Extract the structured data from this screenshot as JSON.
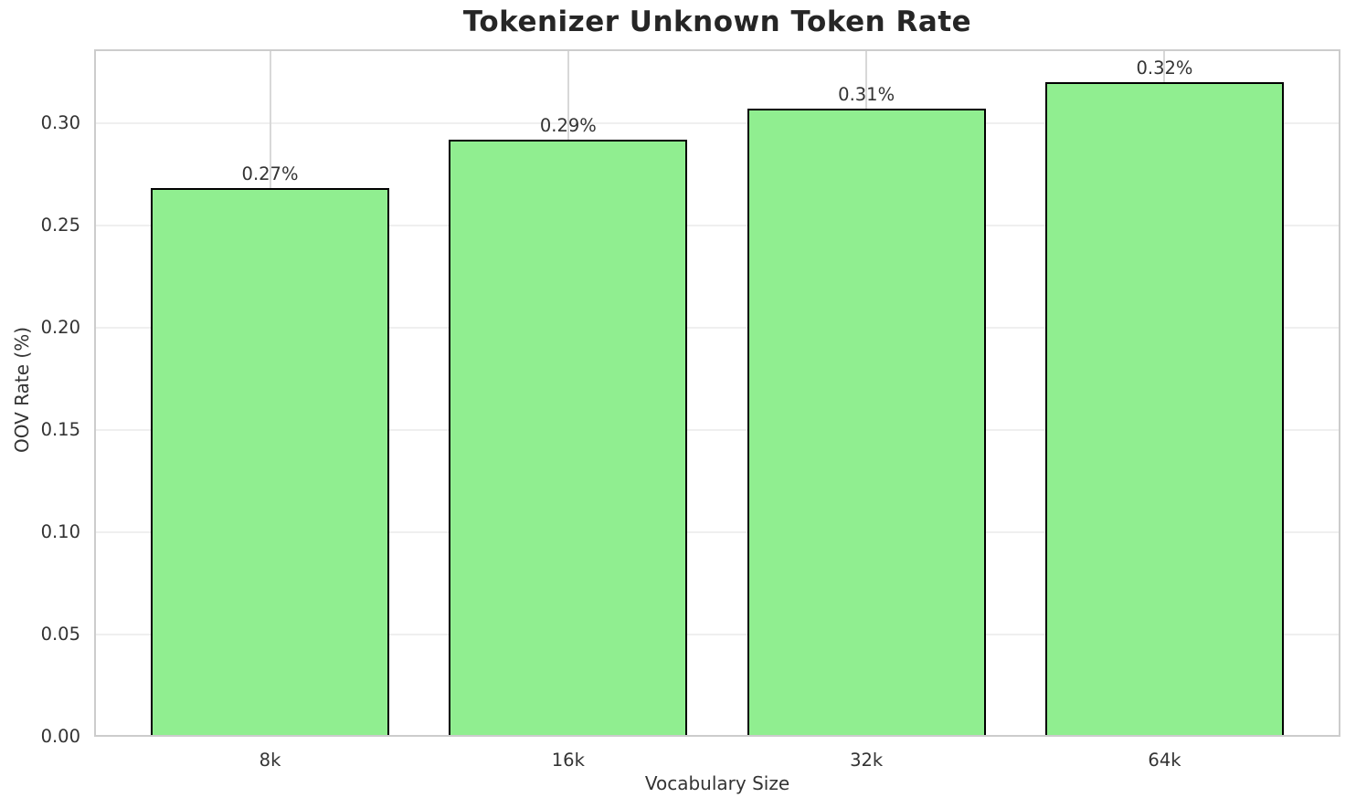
{
  "figure": {
    "background": "#ffffff"
  },
  "chart_data": {
    "type": "bar",
    "title": "Tokenizer Unknown Token Rate",
    "xlabel": "Vocabulary Size",
    "ylabel": "OOV Rate (%)",
    "categories": [
      "8k",
      "16k",
      "32k",
      "64k"
    ],
    "values": [
      0.268,
      0.292,
      0.307,
      0.32
    ],
    "bar_labels": [
      "0.27%",
      "0.29%",
      "0.31%",
      "0.32%"
    ],
    "yticks": [
      0.0,
      0.05,
      0.1,
      0.15,
      0.2,
      0.25,
      0.3
    ],
    "ytick_labels": [
      "0.00",
      "0.05",
      "0.10",
      "0.15",
      "0.20",
      "0.25",
      "0.30"
    ],
    "ylim": [
      0,
      0.336
    ],
    "xlim": [
      -0.59,
      3.59
    ],
    "bar_width_units": 0.8,
    "grid": "both",
    "legend": "none",
    "colors": {
      "bar_fill": "#90EE90",
      "bar_edge": "#000000",
      "grid_horizontal": "#efefef",
      "grid_vertical": "#d8d8d8",
      "spine": "#cccccc",
      "title_text": "#262626",
      "tick_text": "#333333",
      "label_text": "#333333"
    }
  }
}
